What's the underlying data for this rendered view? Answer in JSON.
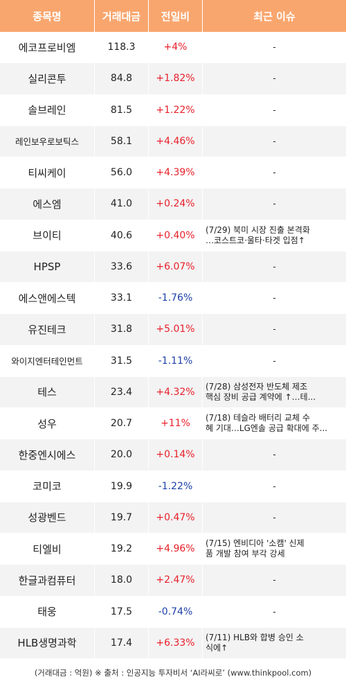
{
  "header": {
    "name": "종목명",
    "volume": "거래대금",
    "change": "전일비",
    "issue": "최근 이슈"
  },
  "rows": [
    {
      "name": "에코프로비엠",
      "volume": "118.3",
      "change": "+4%",
      "dir": "up",
      "issue": "-"
    },
    {
      "name": "실리콘투",
      "volume": "84.8",
      "change": "+1.82%",
      "dir": "up",
      "issue": "-"
    },
    {
      "name": "솔브레인",
      "volume": "81.5",
      "change": "+1.22%",
      "dir": "up",
      "issue": "-"
    },
    {
      "name": "레인보우로보틱스",
      "volume": "58.1",
      "change": "+4.46%",
      "dir": "up",
      "issue": "-"
    },
    {
      "name": "티씨케이",
      "volume": "56.0",
      "change": "+4.39%",
      "dir": "up",
      "issue": "-"
    },
    {
      "name": "에스엠",
      "volume": "41.0",
      "change": "+0.24%",
      "dir": "up",
      "issue": "-"
    },
    {
      "name": "브이티",
      "volume": "40.6",
      "change": "+0.40%",
      "dir": "up",
      "issue": "(7/29) 북미 시장 진출 본격화\n…코스트코·울타·타겟 입점↑"
    },
    {
      "name": "HPSP",
      "volume": "33.6",
      "change": "+6.07%",
      "dir": "up",
      "issue": "-"
    },
    {
      "name": "에스앤에스텍",
      "volume": "33.1",
      "change": "-1.76%",
      "dir": "down",
      "issue": "-"
    },
    {
      "name": "유진테크",
      "volume": "31.8",
      "change": "+5.01%",
      "dir": "up",
      "issue": "-"
    },
    {
      "name": "와이지엔터테인먼트",
      "volume": "31.5",
      "change": "-1.11%",
      "dir": "down",
      "issue": "-"
    },
    {
      "name": "테스",
      "volume": "23.4",
      "change": "+4.32%",
      "dir": "up",
      "issue": "(7/28) 삼성전자 반도체 제조\n핵심 장비 공급 계약에 ↑…테..."
    },
    {
      "name": "성우",
      "volume": "20.7",
      "change": "+11%",
      "dir": "up",
      "issue": "(7/18) 테슬라 배터리 교체 수\n혜 기대…LG엔솔 공급 확대에 주..."
    },
    {
      "name": "한중엔시에스",
      "volume": "20.0",
      "change": "+0.14%",
      "dir": "up",
      "issue": "-"
    },
    {
      "name": "코미코",
      "volume": "19.9",
      "change": "-1.22%",
      "dir": "down",
      "issue": "-"
    },
    {
      "name": "성광벤드",
      "volume": "19.7",
      "change": "+0.47%",
      "dir": "up",
      "issue": "-"
    },
    {
      "name": "티엘비",
      "volume": "19.2",
      "change": "+4.96%",
      "dir": "up",
      "issue": "(7/15) 엔비디아 '소캠' 신제\n품 개발 참여 부각 강세"
    },
    {
      "name": "한글과컴퓨터",
      "volume": "18.0",
      "change": "+2.47%",
      "dir": "up",
      "issue": "-"
    },
    {
      "name": "태웅",
      "volume": "17.5",
      "change": "-0.74%",
      "dir": "down",
      "issue": "-"
    },
    {
      "name": "HLB생명과학",
      "volume": "17.4",
      "change": "+6.33%",
      "dir": "up",
      "issue": "(7/11) HLB와 합병 승인 소\n식에↑"
    }
  ],
  "footer": "(거래대금 : 억원) ※ 출처 : 인공지능 투자비서 ‘AI라씨로’ (www.thinkpool.com)",
  "colors": {
    "header_bg": "#f9a66e",
    "up": "#e8202a",
    "down": "#1b3fa8",
    "row_alt": "#f3f3f3"
  }
}
